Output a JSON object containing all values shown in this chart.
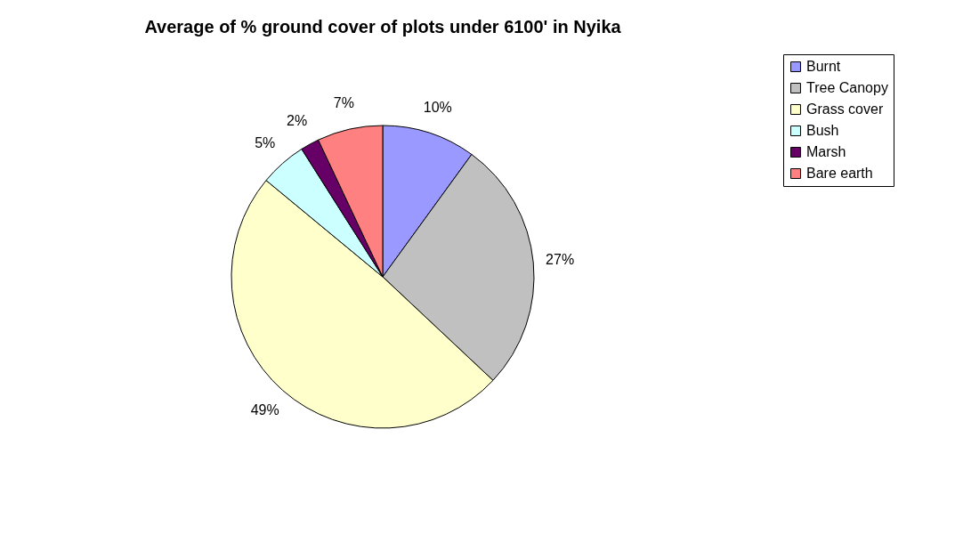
{
  "chart_data": {
    "type": "pie",
    "title": "Average of % ground cover of plots under 6100' in Nyika",
    "categories": [
      "Burnt",
      "Tree Canopy",
      "Grass cover",
      "Bush",
      "Marsh",
      "Bare earth"
    ],
    "values": [
      10,
      27,
      49,
      5,
      2,
      7
    ],
    "colors": [
      "#9999ff",
      "#c0c0c0",
      "#ffffcc",
      "#ccffff",
      "#660066",
      "#ff8080"
    ],
    "value_labels": [
      "10%",
      "27%",
      "49%",
      "5%",
      "2%",
      "7%"
    ],
    "legend": "right"
  }
}
